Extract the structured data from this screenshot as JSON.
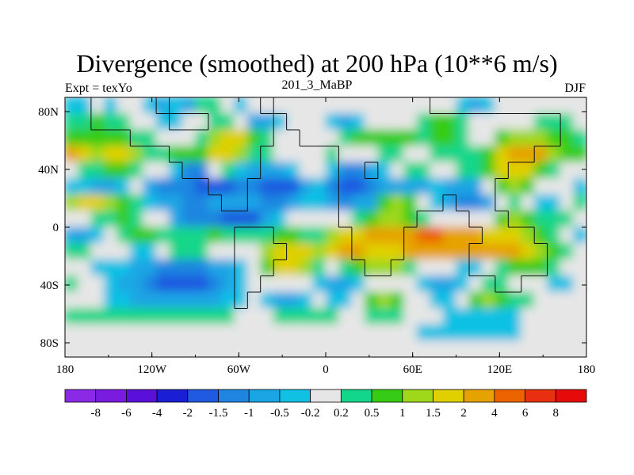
{
  "chart_data": {
    "type": "heatmap",
    "title": "Divergence (smoothed) at 200 hPa (10**6 m/s)",
    "subtitle_left": "Expt = texYo",
    "subtitle_center": "201_3_MaBP",
    "subtitle_right": "DJF",
    "x_ticks": [
      "180",
      "120W",
      "60W",
      "0",
      "60E",
      "120E",
      "180"
    ],
    "y_ticks": [
      "80N",
      "40N",
      "0",
      "40S",
      "80S"
    ],
    "colorbar": {
      "labels": [
        "-8",
        "-6",
        "-4",
        "-2",
        "-1.5",
        "-1",
        "-0.5",
        "-0.2",
        "0.2",
        "0.5",
        "1",
        "1.5",
        "2",
        "4",
        "6",
        "8"
      ],
      "colors": [
        "#8b2ae6",
        "#7a1ce0",
        "#5a10d8",
        "#1a1fd6",
        "#1f5ae0",
        "#1e86e0",
        "#1aa6e4",
        "#11c1e4",
        "#e6e6e6",
        "#12d68a",
        "#36cc16",
        "#9fd81a",
        "#e0d000",
        "#e6a200",
        "#ec6400",
        "#e83010",
        "#e60a0a"
      ]
    },
    "land_fraction": [
      [
        0,
        0,
        1,
        1,
        1,
        1,
        1,
        0,
        1,
        1,
        1,
        1,
        1,
        1,
        1,
        0,
        1,
        1,
        1,
        1,
        1,
        1,
        1,
        1,
        1,
        1,
        1,
        1,
        0,
        0,
        0,
        0,
        0,
        0,
        0,
        0,
        0,
        0,
        0,
        0
      ],
      [
        0,
        0,
        1,
        1,
        1,
        1,
        1,
        1,
        0,
        0,
        0,
        1,
        1,
        1,
        1,
        1,
        0,
        1,
        1,
        1,
        1,
        1,
        1,
        1,
        1,
        1,
        1,
        1,
        1,
        1,
        1,
        1,
        1,
        1,
        1,
        1,
        1,
        1,
        0,
        0
      ],
      [
        0,
        0,
        0,
        0,
        0,
        1,
        1,
        1,
        1,
        1,
        1,
        1,
        1,
        1,
        1,
        1,
        0,
        0,
        1,
        1,
        1,
        1,
        1,
        1,
        1,
        1,
        1,
        1,
        1,
        1,
        1,
        1,
        1,
        1,
        1,
        1,
        1,
        1,
        0,
        0
      ],
      [
        0,
        0,
        0,
        0,
        0,
        0,
        0,
        0,
        1,
        1,
        1,
        1,
        1,
        1,
        1,
        0,
        0,
        0,
        0,
        0,
        0,
        1,
        1,
        1,
        1,
        1,
        1,
        1,
        1,
        1,
        1,
        1,
        1,
        1,
        1,
        1,
        0,
        0,
        0,
        0
      ],
      [
        0,
        0,
        0,
        0,
        0,
        0,
        0,
        0,
        0,
        1,
        1,
        1,
        1,
        1,
        1,
        0,
        0,
        0,
        0,
        0,
        0,
        1,
        1,
        0,
        1,
        1,
        1,
        1,
        1,
        1,
        1,
        1,
        1,
        1,
        0,
        0,
        0,
        0,
        0,
        0
      ],
      [
        0,
        0,
        0,
        0,
        0,
        0,
        0,
        0,
        0,
        0,
        0,
        1,
        1,
        1,
        0,
        0,
        0,
        0,
        0,
        0,
        0,
        1,
        1,
        1,
        1,
        1,
        1,
        1,
        1,
        1,
        1,
        1,
        1,
        0,
        0,
        0,
        0,
        0,
        0,
        0
      ],
      [
        0,
        0,
        0,
        0,
        0,
        0,
        0,
        0,
        0,
        0,
        0,
        0,
        1,
        1,
        0,
        0,
        0,
        0,
        0,
        0,
        0,
        1,
        1,
        1,
        1,
        1,
        1,
        1,
        1,
        0,
        1,
        1,
        1,
        0,
        0,
        0,
        0,
        0,
        0,
        0
      ],
      [
        0,
        0,
        0,
        0,
        0,
        0,
        0,
        0,
        0,
        0,
        0,
        0,
        0,
        0,
        0,
        0,
        0,
        0,
        0,
        0,
        0,
        1,
        1,
        1,
        1,
        1,
        1,
        0,
        0,
        0,
        0,
        1,
        1,
        1,
        0,
        0,
        0,
        0,
        0,
        0
      ],
      [
        0,
        0,
        0,
        0,
        0,
        0,
        0,
        0,
        0,
        0,
        0,
        0,
        0,
        1,
        1,
        1,
        0,
        0,
        0,
        0,
        0,
        0,
        1,
        1,
        1,
        1,
        0,
        0,
        0,
        0,
        0,
        0,
        1,
        1,
        1,
        1,
        0,
        0,
        0,
        0
      ],
      [
        0,
        0,
        0,
        0,
        0,
        0,
        0,
        0,
        0,
        0,
        0,
        0,
        0,
        1,
        1,
        1,
        1,
        0,
        0,
        0,
        0,
        0,
        1,
        1,
        1,
        1,
        0,
        0,
        0,
        0,
        0,
        1,
        1,
        1,
        1,
        1,
        1,
        0,
        0,
        0
      ],
      [
        0,
        0,
        0,
        0,
        0,
        0,
        0,
        0,
        0,
        0,
        0,
        0,
        0,
        1,
        1,
        1,
        0,
        0,
        0,
        0,
        0,
        0,
        0,
        1,
        1,
        0,
        0,
        0,
        0,
        0,
        0,
        1,
        1,
        1,
        1,
        1,
        1,
        0,
        0,
        0
      ],
      [
        0,
        0,
        0,
        0,
        0,
        0,
        0,
        0,
        0,
        0,
        0,
        0,
        0,
        1,
        1,
        0,
        0,
        0,
        0,
        0,
        0,
        0,
        0,
        0,
        0,
        0,
        0,
        0,
        0,
        0,
        0,
        0,
        0,
        1,
        1,
        0,
        0,
        0,
        0,
        0
      ],
      [
        0,
        0,
        0,
        0,
        0,
        0,
        0,
        0,
        0,
        0,
        0,
        0,
        0,
        1,
        0,
        0,
        0,
        0,
        0,
        0,
        0,
        0,
        0,
        0,
        0,
        0,
        0,
        0,
        0,
        0,
        0,
        0,
        0,
        0,
        0,
        0,
        0,
        0,
        0,
        0
      ],
      [
        0,
        0,
        0,
        0,
        0,
        0,
        0,
        0,
        0,
        0,
        0,
        0,
        0,
        0,
        0,
        0,
        0,
        0,
        0,
        0,
        0,
        0,
        0,
        0,
        0,
        0,
        0,
        0,
        0,
        0,
        0,
        0,
        0,
        0,
        0,
        0,
        0,
        0,
        0,
        0
      ],
      [
        0,
        0,
        0,
        0,
        0,
        0,
        0,
        0,
        0,
        0,
        0,
        0,
        0,
        0,
        0,
        0,
        0,
        0,
        0,
        0,
        0,
        0,
        0,
        0,
        0,
        0,
        0,
        0,
        0,
        0,
        0,
        0,
        0,
        0,
        0,
        0,
        0,
        0,
        0,
        0
      ],
      [
        0,
        0,
        0,
        0,
        0,
        0,
        0,
        0,
        0,
        0,
        0,
        0,
        0,
        0,
        0,
        0,
        0,
        0,
        0,
        0,
        0,
        0,
        0,
        0,
        0,
        0,
        0,
        0,
        0,
        0,
        0,
        0,
        0,
        0,
        0,
        0,
        0,
        0,
        0,
        0
      ]
    ],
    "data_grid": [
      [
        7,
        7,
        8,
        7,
        8,
        8,
        7,
        6,
        7,
        6,
        9,
        9,
        8,
        7,
        8,
        8,
        8,
        8,
        8,
        8,
        8,
        8,
        8,
        8,
        8,
        8,
        8,
        8,
        8,
        8,
        7,
        6,
        7,
        8,
        8,
        8,
        8,
        8,
        8,
        8
      ],
      [
        9,
        9,
        10,
        9,
        9,
        8,
        8,
        7,
        7,
        8,
        8,
        9,
        9,
        8,
        6,
        6,
        7,
        8,
        8,
        8,
        7,
        6,
        7,
        8,
        8,
        8,
        8,
        9,
        10,
        10,
        9,
        8,
        8,
        8,
        8,
        8,
        9,
        9,
        9,
        8
      ],
      [
        10,
        10,
        10,
        10,
        10,
        9,
        9,
        8,
        8,
        8,
        9,
        11,
        12,
        12,
        10,
        9,
        8,
        8,
        8,
        8,
        8,
        9,
        10,
        10,
        10,
        10,
        10,
        9,
        10,
        10,
        9,
        8,
        8,
        10,
        11,
        11,
        11,
        10,
        10,
        9
      ],
      [
        13,
        12,
        11,
        12,
        12,
        11,
        9,
        9,
        10,
        10,
        10,
        12,
        12,
        11,
        9,
        9,
        8,
        8,
        8,
        8,
        9,
        8,
        8,
        8,
        9,
        9,
        8,
        8,
        9,
        9,
        9,
        9,
        10,
        12,
        13,
        13,
        13,
        11,
        10,
        10
      ],
      [
        8,
        9,
        9,
        10,
        10,
        9,
        8,
        8,
        7,
        5,
        5,
        8,
        9,
        7,
        6,
        6,
        6,
        7,
        8,
        8,
        7,
        5,
        5,
        6,
        7,
        8,
        9,
        9,
        8,
        8,
        9,
        9,
        10,
        12,
        12,
        12,
        10,
        9,
        8,
        8
      ],
      [
        7,
        7,
        6,
        6,
        7,
        8,
        6,
        5,
        5,
        5,
        4,
        4,
        4,
        5,
        5,
        4,
        4,
        4,
        6,
        7,
        5,
        4,
        4,
        5,
        6,
        6,
        6,
        6,
        7,
        6,
        6,
        6,
        8,
        10,
        11,
        10,
        8,
        8,
        8,
        7
      ],
      [
        11,
        12,
        12,
        11,
        10,
        9,
        7,
        6,
        6,
        5,
        5,
        6,
        6,
        6,
        6,
        5,
        5,
        6,
        7,
        7,
        6,
        5,
        6,
        6,
        10,
        11,
        10,
        8,
        7,
        6,
        5,
        5,
        6,
        8,
        9,
        8,
        7,
        7,
        8,
        9
      ],
      [
        8,
        8,
        9,
        9,
        10,
        9,
        8,
        8,
        6,
        5,
        5,
        5,
        4,
        4,
        4,
        6,
        7,
        8,
        8,
        8,
        8,
        8,
        9,
        10,
        11,
        11,
        10,
        9,
        8,
        8,
        8,
        8,
        8,
        10,
        11,
        10,
        9,
        9,
        9,
        8
      ],
      [
        6,
        6,
        7,
        8,
        9,
        10,
        10,
        9,
        9,
        9,
        9,
        10,
        9,
        9,
        9,
        9,
        10,
        10,
        9,
        9,
        11,
        12,
        12,
        13,
        13,
        13,
        13,
        14,
        14,
        13,
        13,
        13,
        12,
        12,
        12,
        11,
        10,
        9,
        8,
        7
      ],
      [
        9,
        9,
        8,
        8,
        8,
        7,
        7,
        8,
        9,
        9,
        9,
        8,
        8,
        8,
        8,
        11,
        12,
        12,
        12,
        11,
        12,
        13,
        13,
        12,
        12,
        12,
        13,
        13,
        13,
        13,
        13,
        13,
        13,
        13,
        13,
        12,
        11,
        10,
        9,
        8
      ],
      [
        8,
        8,
        7,
        7,
        7,
        6,
        6,
        5,
        5,
        5,
        5,
        6,
        6,
        7,
        8,
        10,
        12,
        12,
        11,
        9,
        8,
        9,
        10,
        11,
        11,
        11,
        9,
        8,
        8,
        8,
        7,
        7,
        8,
        9,
        10,
        10,
        10,
        9,
        8,
        8
      ],
      [
        9,
        8,
        8,
        7,
        6,
        6,
        5,
        4,
        4,
        4,
        4,
        5,
        6,
        7,
        8,
        8,
        8,
        8,
        8,
        7,
        6,
        6,
        7,
        8,
        8,
        8,
        8,
        7,
        6,
        6,
        7,
        8,
        9,
        9,
        8,
        8,
        8,
        7,
        7,
        8
      ],
      [
        8,
        8,
        8,
        7,
        7,
        6,
        6,
        6,
        6,
        6,
        6,
        6,
        7,
        7,
        8,
        7,
        6,
        6,
        7,
        8,
        7,
        7,
        8,
        10,
        11,
        10,
        8,
        8,
        7,
        7,
        8,
        10,
        11,
        10,
        9,
        9,
        8,
        8,
        8,
        8
      ],
      [
        9,
        9,
        9,
        9,
        9,
        9,
        9,
        9,
        9,
        9,
        9,
        9,
        9,
        8,
        8,
        8,
        9,
        9,
        9,
        9,
        9,
        8,
        8,
        9,
        9,
        9,
        8,
        8,
        8,
        7,
        7,
        7,
        7,
        7,
        7,
        8,
        8,
        8,
        8,
        8
      ],
      [
        8,
        8,
        8,
        8,
        8,
        8,
        8,
        8,
        8,
        8,
        8,
        8,
        8,
        8,
        8,
        8,
        8,
        8,
        8,
        8,
        8,
        8,
        8,
        8,
        8,
        8,
        8,
        7,
        7,
        7,
        7,
        7,
        7,
        7,
        7,
        8,
        8,
        8,
        8,
        8
      ],
      [
        8,
        8,
        8,
        8,
        8,
        8,
        8,
        8,
        8,
        8,
        8,
        8,
        8,
        8,
        8,
        8,
        8,
        8,
        8,
        8,
        8,
        8,
        8,
        8,
        8,
        8,
        8,
        8,
        8,
        8,
        8,
        8,
        8,
        8,
        8,
        8,
        8,
        8,
        8,
        8
      ]
    ]
  }
}
